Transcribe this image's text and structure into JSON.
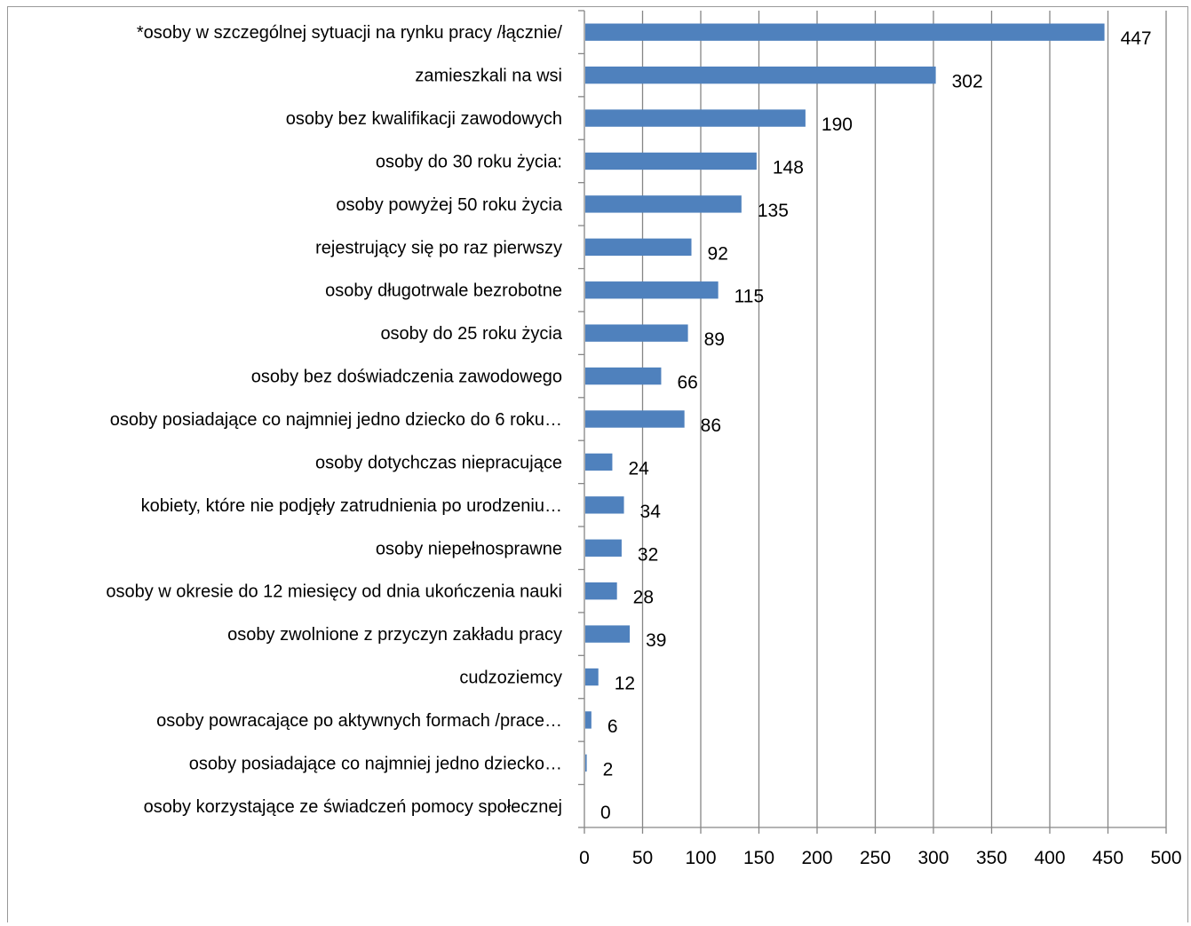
{
  "chart_data": {
    "type": "bar",
    "orientation": "horizontal",
    "categories": [
      "*osoby w szczególnej sytuacji na rynku pracy /łącznie/",
      "zamieszkali na wsi",
      "osoby bez kwalifikacji zawodowych",
      "osoby do 30 roku życia:",
      "osoby powyżej 50 roku życia",
      "rejestrujący się po raz pierwszy",
      "osoby długotrwale bezrobotne",
      "osoby do 25 roku życia",
      "osoby bez doświadczenia zawodowego",
      "osoby posiadające co najmniej jedno dziecko do 6 roku…",
      "osoby dotychczas niepracujące",
      "kobiety, które nie podjęły zatrudnienia po urodzeniu…",
      "osoby niepełnosprawne",
      "osoby w okresie do 12 miesięcy od dnia ukończenia nauki",
      "osoby zwolnione z przyczyn zakładu pracy",
      "cudzoziemcy",
      "osoby powracające po aktywnych formach /prace…",
      "osoby posiadające co najmniej jedno dziecko…",
      "osoby korzystające ze świadczeń pomocy społecznej"
    ],
    "values": [
      447,
      302,
      190,
      148,
      135,
      92,
      115,
      89,
      66,
      86,
      24,
      34,
      32,
      28,
      39,
      12,
      6,
      2,
      0
    ],
    "xlim": [
      0,
      500
    ],
    "xticks": [
      0,
      50,
      100,
      150,
      200,
      250,
      300,
      350,
      400,
      450,
      500
    ],
    "grid": "vertical",
    "data_labels": true,
    "colors": {
      "bar": "#4f81bd",
      "gridline": "#868686"
    }
  }
}
